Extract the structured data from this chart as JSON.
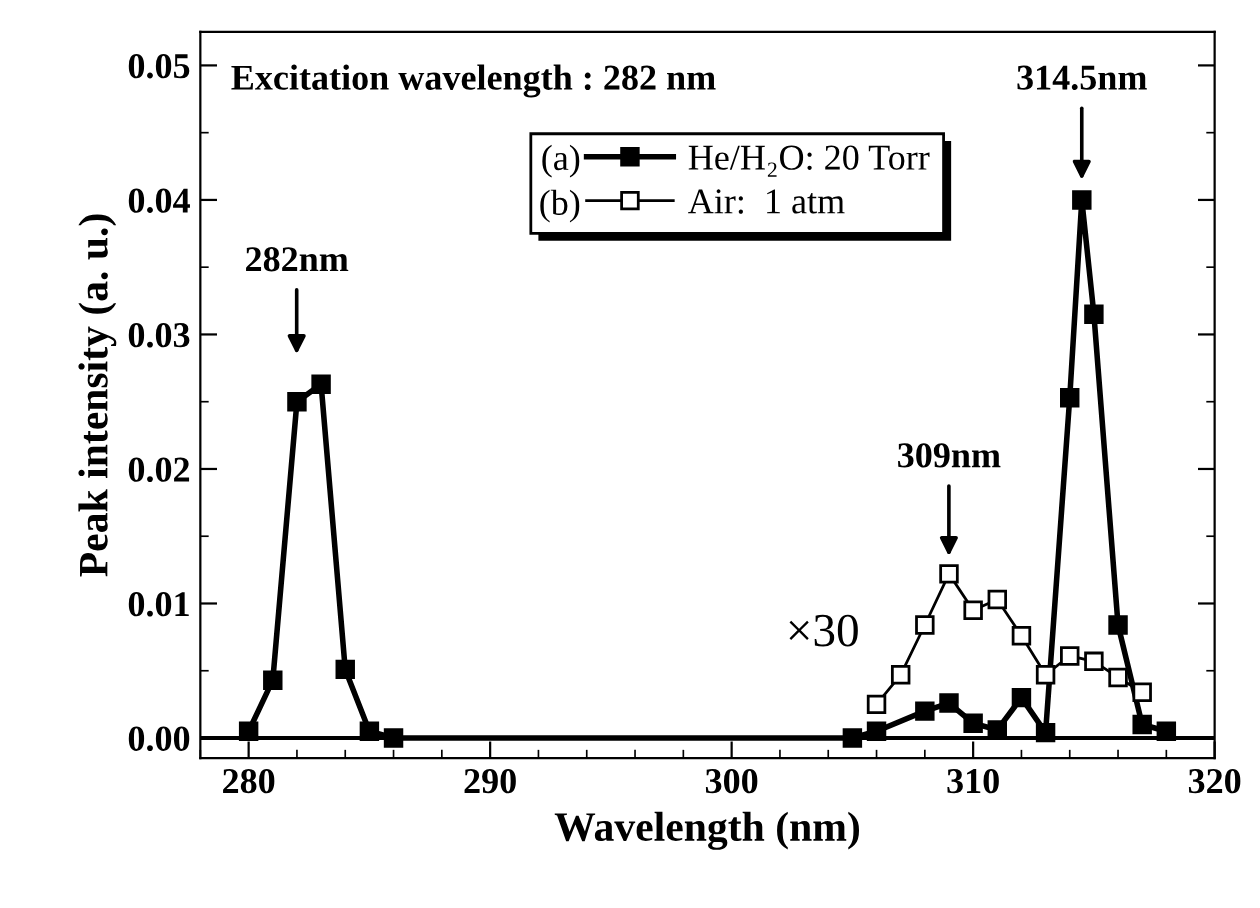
{
  "chart_data": {
    "type": "line",
    "xlabel": "Wavelength (nm)",
    "ylabel": "Peak intensity (a. u.)",
    "xlim": [
      278,
      320
    ],
    "xticks": [
      280,
      290,
      300,
      310,
      320
    ],
    "ylim": [
      -0.0015,
      0.0525
    ],
    "yticks": [
      {
        "value": 0,
        "label": "0.00"
      },
      0.01,
      0.02,
      0.03,
      0.04,
      0.05
    ],
    "grid": false,
    "legend": "top",
    "marker": "square",
    "line_style": "solid",
    "ref_lines": [
      {
        "axis": "y",
        "value": 0,
        "color": "#000000"
      }
    ],
    "series": [
      {
        "name": "He/H₂O: 20 Torr",
        "color": "#000000",
        "x": [
          280,
          281,
          282,
          283,
          284,
          285,
          286,
          305,
          306,
          308,
          309,
          310,
          311,
          312,
          313,
          314,
          314.5,
          315,
          316,
          317,
          318
        ],
        "values": [
          0.0005,
          0.0043,
          0.025,
          0.0263,
          0.0051,
          0.0005,
          0,
          0,
          0.0005,
          0.002,
          0.0026,
          0.0011,
          0.0006,
          0.003,
          0.0004,
          0.0253,
          0.04,
          0.0315,
          0.0084,
          0.001,
          0.0005
        ]
      },
      {
        "name": "Air:  1 atm",
        "color": "#000000",
        "x": [
          306,
          307,
          308,
          309,
          310,
          311,
          312,
          313,
          314,
          315,
          316,
          317
        ],
        "values": [
          0.0025,
          0.0047,
          0.0084,
          0.0122,
          0.0095,
          0.0103,
          0.0076,
          0.0047,
          0.0061,
          0.0057,
          0.0045,
          0.0034
        ]
      }
    ],
    "annotations": [
      "Excitation wavelength : 282 nm",
      "282nm",
      "309nm",
      "314.5nm",
      "×30",
      "(a)",
      "(b)"
    ]
  }
}
